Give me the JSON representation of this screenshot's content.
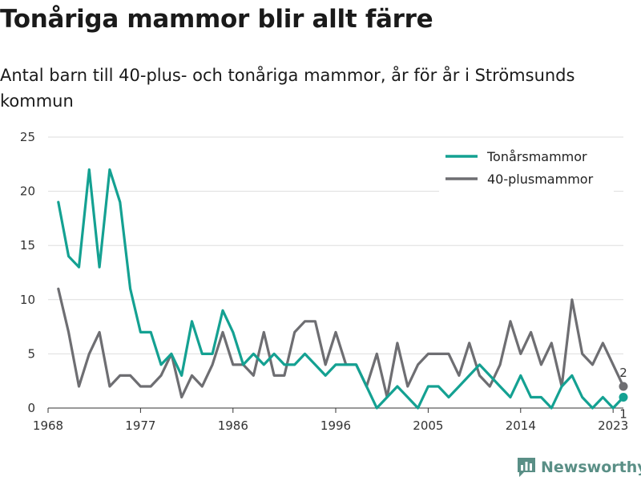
{
  "title": "Tonåriga mammor blir allt färre",
  "subtitle": "Antal barn till 40-plus- och tonåriga mammor, år för år i Strömsunds kommun",
  "brand": "Newsworthy",
  "colors": {
    "teen": "#14a192",
    "forty": "#6e6e72",
    "grid": "#dedede",
    "brand": "#5a8f86"
  },
  "chart_data": {
    "type": "line",
    "title": "Tonåriga mammor blir allt färre",
    "xlabel": "",
    "ylabel": "",
    "xlim": [
      1968,
      2024
    ],
    "ylim": [
      0,
      25
    ],
    "xticks": [
      1968,
      1977,
      1986,
      1996,
      2005,
      2014,
      2023
    ],
    "yticks": [
      0,
      5,
      10,
      15,
      20,
      25
    ],
    "grid": true,
    "legend": "top-right",
    "x": [
      1969,
      1970,
      1971,
      1972,
      1973,
      1974,
      1975,
      1976,
      1977,
      1978,
      1979,
      1980,
      1981,
      1982,
      1983,
      1984,
      1985,
      1986,
      1987,
      1988,
      1989,
      1990,
      1991,
      1992,
      1993,
      1994,
      1995,
      1996,
      1997,
      1998,
      1999,
      2000,
      2001,
      2002,
      2003,
      2004,
      2005,
      2006,
      2007,
      2008,
      2009,
      2010,
      2011,
      2012,
      2013,
      2014,
      2015,
      2016,
      2017,
      2018,
      2019,
      2020,
      2021,
      2022,
      2023,
      2024
    ],
    "series": [
      {
        "name": "Tonårsmammor",
        "values": [
          19,
          14,
          13,
          22,
          13,
          22,
          19,
          11,
          7,
          7,
          4,
          5,
          3,
          8,
          5,
          5,
          9,
          7,
          4,
          5,
          4,
          5,
          4,
          4,
          5,
          4,
          3,
          4,
          4,
          4,
          2,
          0,
          1,
          2,
          1,
          0,
          2,
          2,
          1,
          2,
          3,
          4,
          3,
          2,
          1,
          3,
          1,
          1,
          0,
          2,
          3,
          1,
          0,
          1,
          0,
          1
        ],
        "end_label": "1"
      },
      {
        "name": "40-plusmammor",
        "values": [
          11,
          7,
          2,
          5,
          7,
          2,
          3,
          3,
          2,
          2,
          3,
          5,
          1,
          3,
          2,
          4,
          7,
          4,
          4,
          3,
          7,
          3,
          3,
          7,
          8,
          8,
          4,
          7,
          4,
          4,
          2,
          5,
          1,
          6,
          2,
          4,
          5,
          5,
          5,
          3,
          6,
          3,
          2,
          4,
          8,
          5,
          7,
          4,
          6,
          2,
          10,
          5,
          4,
          6,
          4,
          2
        ],
        "end_label": "2"
      }
    ]
  }
}
